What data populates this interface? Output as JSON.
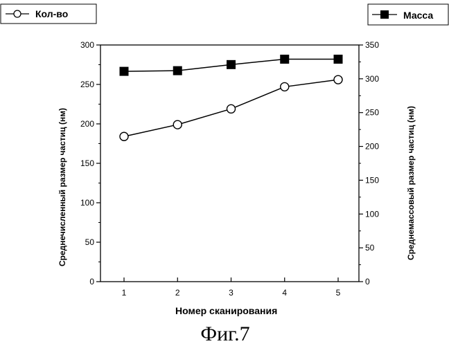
{
  "chart_data": {
    "type": "line",
    "caption": "Фиг.7",
    "xlabel": "Номер сканирования",
    "ylabel_left": "Среднечисленный размер частиц (нм)",
    "ylabel_right": "Среднемассовый размер частиц  (нм)",
    "categories": [
      1,
      2,
      3,
      4,
      5
    ],
    "x_ticks": [
      "1",
      "2",
      "3",
      "4",
      "5"
    ],
    "y_left": {
      "ylim": [
        0,
        300
      ],
      "ticks": [
        "0",
        "50",
        "100",
        "150",
        "200",
        "250",
        "300"
      ]
    },
    "y_right": {
      "ylim": [
        0,
        350
      ],
      "ticks": [
        "0",
        "50",
        "100",
        "150",
        "200",
        "250",
        "300",
        "350"
      ]
    },
    "series": [
      {
        "name": "Кол-во",
        "axis": "left",
        "marker": "open-circle",
        "values": [
          184,
          199,
          219,
          247,
          256
        ]
      },
      {
        "name": "Масса",
        "axis": "right",
        "marker": "filled-square",
        "values": [
          311,
          312,
          321,
          329,
          329
        ]
      }
    ],
    "legend": [
      "top-left",
      "top-right"
    ],
    "grid": false,
    "colors": {
      "line": "#000000",
      "background": "#ffffff"
    }
  }
}
